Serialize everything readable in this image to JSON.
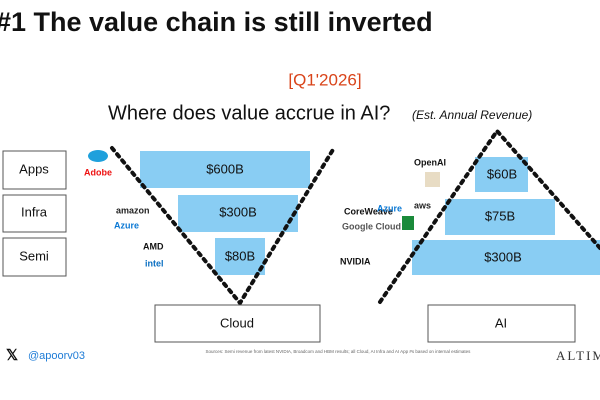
{
  "header": {
    "title": "#1 The value chain is still inverted",
    "period": "[Q1'2026]",
    "subtitle": "Where does value accrue in AI?",
    "note": "(Est. Annual Revenue)"
  },
  "layers": [
    "Apps",
    "Infra",
    "Semi"
  ],
  "cloud": {
    "label": "Cloud",
    "bars": [
      "$600B",
      "$300B",
      "$80B"
    ],
    "logos": [
      "Adobe",
      "amazon",
      "Azure",
      "AMD",
      "intel"
    ]
  },
  "ai": {
    "label": "AI",
    "bars": [
      "$60B",
      "$75B",
      "$300B"
    ],
    "logos": [
      "OpenAI",
      "CoreWeave",
      "Azure",
      "aws",
      "Google Cloud",
      "NVIDIA"
    ]
  },
  "footer": {
    "handle": "@apoorv03",
    "source": "Sources: Semi revenue from latest NVIDIA, Broadcom and HBM results; all Cloud, AI Infra and AI App #s based on internal estimates",
    "brand": "ALTIM"
  }
}
